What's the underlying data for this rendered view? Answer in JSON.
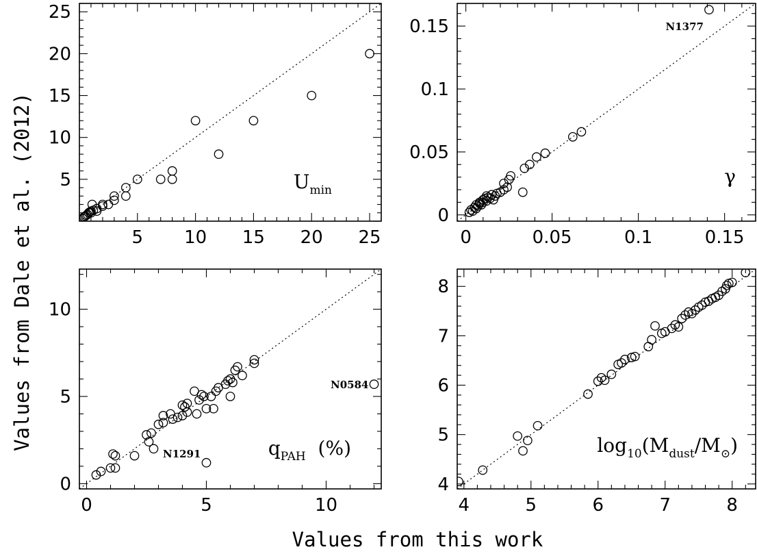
{
  "figure": {
    "xlabel": "Values from this work",
    "ylabel": "Values from Dale et al. (2012)"
  },
  "chart_data": [
    {
      "type": "scatter",
      "title": "",
      "label": {
        "main": "U",
        "sub": "min",
        "suffix": ""
      },
      "xlim": [
        0,
        26
      ],
      "ylim": [
        0,
        26
      ],
      "xticks": [
        5,
        10,
        15,
        20,
        25
      ],
      "yticks": [
        5,
        10,
        15,
        20,
        25
      ],
      "diagonal": true,
      "points": [
        [
          0.3,
          0.3
        ],
        [
          0.4,
          0.5
        ],
        [
          0.5,
          0.6
        ],
        [
          0.6,
          0.7
        ],
        [
          0.7,
          0.8
        ],
        [
          0.8,
          1.0
        ],
        [
          0.9,
          1.1
        ],
        [
          1.0,
          1.0
        ],
        [
          1.0,
          1.2
        ],
        [
          1.1,
          2.0
        ],
        [
          1.2,
          1.3
        ],
        [
          1.5,
          1.5
        ],
        [
          1.5,
          1.2
        ],
        [
          2.0,
          1.8
        ],
        [
          2.0,
          2.0
        ],
        [
          2.5,
          2.0
        ],
        [
          3.0,
          2.5
        ],
        [
          3.0,
          3.0
        ],
        [
          4.0,
          3.0
        ],
        [
          4.0,
          4.0
        ],
        [
          5.0,
          5.0
        ],
        [
          7.0,
          5.0
        ],
        [
          8.0,
          5.0
        ],
        [
          8.0,
          6.0
        ],
        [
          10.0,
          12.0
        ],
        [
          12.0,
          8.0
        ],
        [
          15.0,
          12.0
        ],
        [
          20.0,
          15.0
        ],
        [
          25.0,
          20.0
        ]
      ],
      "annotations": []
    },
    {
      "type": "scatter",
      "title": "",
      "label": {
        "main": "γ",
        "sub": "",
        "suffix": ""
      },
      "xlim": [
        -0.005,
        0.168
      ],
      "ylim": [
        -0.005,
        0.168
      ],
      "xticks": [
        0,
        0.05,
        0.1,
        0.15
      ],
      "yticks": [
        0,
        0.05,
        0.1,
        0.15
      ],
      "diagonal": true,
      "points": [
        [
          0.002,
          0.002
        ],
        [
          0.003,
          0.004
        ],
        [
          0.004,
          0.003
        ],
        [
          0.005,
          0.006
        ],
        [
          0.006,
          0.005
        ],
        [
          0.006,
          0.008
        ],
        [
          0.007,
          0.007
        ],
        [
          0.008,
          0.009
        ],
        [
          0.008,
          0.01
        ],
        [
          0.009,
          0.008
        ],
        [
          0.01,
          0.012
        ],
        [
          0.01,
          0.01
        ],
        [
          0.011,
          0.013
        ],
        [
          0.012,
          0.011
        ],
        [
          0.012,
          0.015
        ],
        [
          0.013,
          0.014
        ],
        [
          0.014,
          0.013
        ],
        [
          0.015,
          0.016
        ],
        [
          0.016,
          0.012
        ],
        [
          0.017,
          0.015
        ],
        [
          0.018,
          0.017
        ],
        [
          0.02,
          0.018
        ],
        [
          0.022,
          0.02
        ],
        [
          0.022,
          0.025
        ],
        [
          0.024,
          0.022
        ],
        [
          0.025,
          0.028
        ],
        [
          0.026,
          0.031
        ],
        [
          0.033,
          0.018
        ],
        [
          0.034,
          0.037
        ],
        [
          0.037,
          0.04
        ],
        [
          0.041,
          0.046
        ],
        [
          0.046,
          0.049
        ],
        [
          0.062,
          0.062
        ],
        [
          0.067,
          0.066
        ],
        [
          0.141,
          0.163
        ]
      ],
      "annotations": [
        {
          "text": "N1377",
          "x": 0.141,
          "y": 0.163
        }
      ]
    },
    {
      "type": "scatter",
      "title": "",
      "label": {
        "main": "q",
        "sub": "PAH",
        "suffix": "  (%)"
      },
      "xlim": [
        -0.3,
        12.3
      ],
      "ylim": [
        -0.3,
        12.3
      ],
      "xticks": [
        0,
        5,
        10
      ],
      "yticks": [
        0,
        5,
        10
      ],
      "diagonal": true,
      "points": [
        [
          0.4,
          0.5
        ],
        [
          0.6,
          0.7
        ],
        [
          1.0,
          0.9
        ],
        [
          1.2,
          0.9
        ],
        [
          1.1,
          1.7
        ],
        [
          1.2,
          1.6
        ],
        [
          2.0,
          1.6
        ],
        [
          2.5,
          2.8
        ],
        [
          2.6,
          2.4
        ],
        [
          2.7,
          2.9
        ],
        [
          2.8,
          2.0
        ],
        [
          3.0,
          3.4
        ],
        [
          3.2,
          3.5
        ],
        [
          3.2,
          3.9
        ],
        [
          3.5,
          4.0
        ],
        [
          3.6,
          3.7
        ],
        [
          3.8,
          3.8
        ],
        [
          4.0,
          3.9
        ],
        [
          4.0,
          4.5
        ],
        [
          4.1,
          4.4
        ],
        [
          4.2,
          4.1
        ],
        [
          4.2,
          4.6
        ],
        [
          4.5,
          5.3
        ],
        [
          4.6,
          4.0
        ],
        [
          4.7,
          4.8
        ],
        [
          4.8,
          5.1
        ],
        [
          4.9,
          5.0
        ],
        [
          5.0,
          4.3
        ],
        [
          5.2,
          5.0
        ],
        [
          5.3,
          4.3
        ],
        [
          5.4,
          5.3
        ],
        [
          5.5,
          5.5
        ],
        [
          5.8,
          5.7
        ],
        [
          5.9,
          5.9
        ],
        [
          6.0,
          5.0
        ],
        [
          6.0,
          6.0
        ],
        [
          6.1,
          5.8
        ],
        [
          6.2,
          6.5
        ],
        [
          6.3,
          6.7
        ],
        [
          6.5,
          6.2
        ],
        [
          7.0,
          6.9
        ],
        [
          7.0,
          7.1
        ],
        [
          5.0,
          1.2
        ],
        [
          12.0,
          5.7
        ]
      ],
      "annotations": [
        {
          "text": "N1291",
          "x": 5.0,
          "y": 1.2
        },
        {
          "text": "N0584",
          "x": 12.0,
          "y": 5.7
        }
      ]
    },
    {
      "type": "scatter",
      "title": "",
      "label": {
        "main": "log",
        "sub": "10",
        "suffix": "(M_dust/M_sun)"
      },
      "xlim": [
        3.9,
        8.35
      ],
      "ylim": [
        3.9,
        8.35
      ],
      "xticks": [
        4,
        5,
        6,
        7,
        8
      ],
      "yticks": [
        4,
        5,
        6,
        7,
        8
      ],
      "diagonal": true,
      "points": [
        [
          3.92,
          4.05
        ],
        [
          4.28,
          4.28
        ],
        [
          4.8,
          4.97
        ],
        [
          4.88,
          4.67
        ],
        [
          4.95,
          4.88
        ],
        [
          5.1,
          5.18
        ],
        [
          5.85,
          5.82
        ],
        [
          6.0,
          6.08
        ],
        [
          6.05,
          6.15
        ],
        [
          6.1,
          6.1
        ],
        [
          6.2,
          6.22
        ],
        [
          6.3,
          6.42
        ],
        [
          6.35,
          6.45
        ],
        [
          6.4,
          6.52
        ],
        [
          6.5,
          6.56
        ],
        [
          6.55,
          6.58
        ],
        [
          6.75,
          6.78
        ],
        [
          6.8,
          6.92
        ],
        [
          6.85,
          7.2
        ],
        [
          6.95,
          7.05
        ],
        [
          7.0,
          7.08
        ],
        [
          7.1,
          7.15
        ],
        [
          7.15,
          7.22
        ],
        [
          7.2,
          7.18
        ],
        [
          7.25,
          7.35
        ],
        [
          7.3,
          7.42
        ],
        [
          7.35,
          7.48
        ],
        [
          7.4,
          7.45
        ],
        [
          7.45,
          7.52
        ],
        [
          7.5,
          7.58
        ],
        [
          7.55,
          7.62
        ],
        [
          7.6,
          7.68
        ],
        [
          7.65,
          7.7
        ],
        [
          7.7,
          7.75
        ],
        [
          7.75,
          7.78
        ],
        [
          7.8,
          7.82
        ],
        [
          7.85,
          7.9
        ],
        [
          7.9,
          7.95
        ],
        [
          7.92,
          8.02
        ],
        [
          7.95,
          8.06
        ],
        [
          8.0,
          8.08
        ],
        [
          8.2,
          8.28
        ]
      ],
      "annotations": []
    }
  ]
}
